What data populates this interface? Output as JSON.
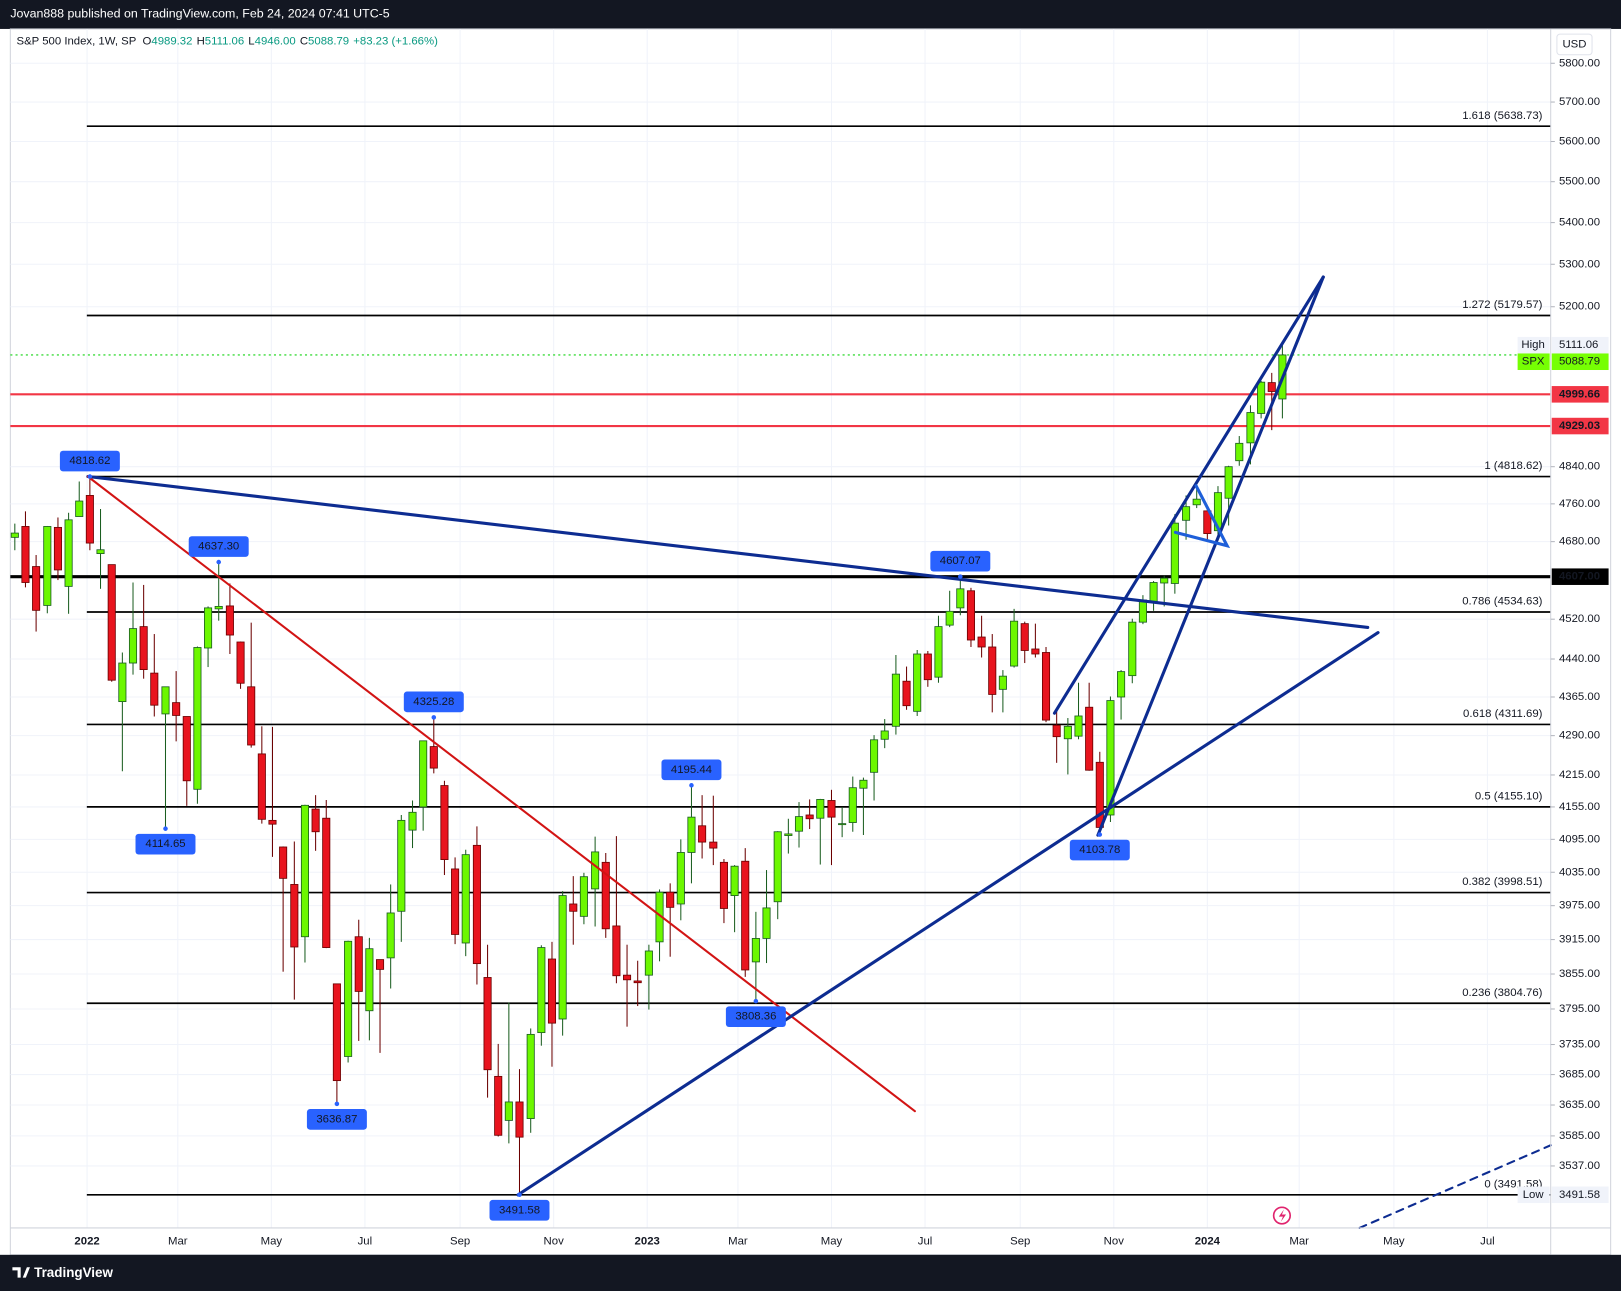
{
  "header": {
    "publisher": "Jovan888 published on TradingView.com, Feb 24, 2024 07:41 UTC-5",
    "ohlc": [
      {
        "key": "O",
        "value": "4989.32"
      },
      {
        "key": "H",
        "value": "5111.06"
      },
      {
        "key": "L",
        "value": "4946.00"
      },
      {
        "key": "C",
        "value": "5088.79"
      }
    ],
    "change": "+83.23 (+1.66%)"
  },
  "footer": {
    "brand": "TradingView"
  },
  "chart_data": {
    "type": "candlestick",
    "title": "S&P 500 Index, 1W, SP",
    "currency": "USD",
    "x": [
      2021.871,
      2021.89,
      2021.909,
      2021.929,
      2021.948,
      2021.967,
      2021.986,
      2022.005,
      2022.024,
      2022.044,
      2022.063,
      2022.082,
      2022.101,
      2022.12,
      2022.14,
      2022.159,
      2022.178,
      2022.197,
      2022.216,
      2022.235,
      2022.255,
      2022.274,
      2022.293,
      2022.312,
      2022.331,
      2022.35,
      2022.37,
      2022.389,
      2022.408,
      2022.427,
      2022.446,
      2022.466,
      2022.485,
      2022.504,
      2022.523,
      2022.542,
      2022.561,
      2022.581,
      2022.6,
      2022.619,
      2022.638,
      2022.657,
      2022.676,
      2022.696,
      2022.715,
      2022.734,
      2022.753,
      2022.772,
      2022.792,
      2022.811,
      2022.83,
      2022.849,
      2022.868,
      2022.887,
      2022.907,
      2022.926,
      2022.945,
      2022.964,
      2022.983,
      2023.003,
      2023.022,
      2023.041,
      2023.06,
      2023.079,
      2023.098,
      2023.118,
      2023.137,
      2023.156,
      2023.175,
      2023.194,
      2023.213,
      2023.233,
      2023.252,
      2023.271,
      2023.29,
      2023.309,
      2023.329,
      2023.348,
      2023.367,
      2023.386,
      2023.405,
      2023.424,
      2023.444,
      2023.463,
      2023.482,
      2023.501,
      2023.52,
      2023.54,
      2023.559,
      2023.578,
      2023.597,
      2023.616,
      2023.635,
      2023.655,
      2023.674,
      2023.693,
      2023.712,
      2023.731,
      2023.751,
      2023.77,
      2023.789,
      2023.808,
      2023.827,
      2023.846,
      2023.866,
      2023.885,
      2023.904,
      2023.923,
      2023.942,
      2023.962,
      2023.981,
      2024.0,
      2024.019,
      2024.038,
      2024.057,
      2024.077,
      2024.096,
      2024.115,
      2024.134
    ],
    "open": [
      4689,
      4712,
      4628,
      4548,
      4710,
      4587,
      4733,
      4778,
      4655,
      4632,
      4356,
      4432,
      4505,
      4412,
      4332,
      4354,
      4327,
      4188,
      4462,
      4541,
      4547,
      4474,
      4385,
      4255,
      4130,
      4081,
      4013,
      3920,
      4151,
      4134,
      3838,
      3715,
      3920,
      3792,
      3880,
      3883,
      3965,
      4112,
      4155,
      4269,
      4195,
      4041,
      3909,
      4084,
      3849,
      3682,
      3610,
      3640,
      3613,
      3755,
      3881,
      3778,
      3978,
      3956,
      4005,
      4053,
      3939,
      3853,
      3843,
      3853,
      3911,
      3999,
      3978,
      4071,
      4120,
      4090,
      4053,
      3993,
      4055,
      3876,
      3917,
      3982,
      4102,
      4110,
      4140,
      4134,
      4167,
      4124,
      4126,
      4190,
      4220,
      4283,
      4308,
      4396,
      4337,
      4450,
      4404,
      4508,
      4543,
      4578,
      4484,
      4464,
      4380,
      4426,
      4511,
      4460,
      4453,
      4310,
      4284,
      4289,
      4345,
      4239,
      4140,
      4365,
      4407,
      4514,
      4554,
      4594,
      4593,
      4725,
      4758,
      4745,
      4703,
      4772,
      4853,
      4892,
      4957,
      5026,
      4989.32
    ],
    "high": [
      4718,
      4744,
      4652,
      4713,
      4731,
      4741,
      4808,
      4818.62,
      4749,
      4632,
      4453,
      4595,
      4590,
      4490,
      4385,
      4416,
      4327,
      4465,
      4546,
      4637.3,
      4593,
      4475,
      4513,
      4308,
      4307,
      4082,
      4091,
      4159,
      4177,
      4168,
      3838,
      3913,
      3950,
      3918,
      3880,
      4013,
      4140,
      4167,
      4280,
      4325.28,
      4204,
      4062,
      4076,
      4119,
      3906,
      3736,
      3806,
      3694,
      3762,
      3905,
      3911,
      4001,
      4028,
      4034,
      4100,
      4070,
      4101,
      3906,
      3878,
      3906,
      4004,
      4015,
      4095,
      4195.44,
      4177,
      4176,
      4059,
      4048,
      4079,
      3964,
      4039,
      4110,
      4133,
      4164,
      4169,
      4170,
      4187,
      4155,
      4212,
      4210,
      4291,
      4322,
      4448,
      4425,
      4458,
      4456,
      4527,
      4578,
      4607.07,
      4584,
      4527,
      4490,
      4418,
      4541,
      4515,
      4511,
      4464,
      4338,
      4324,
      4393,
      4393,
      4259,
      4366,
      4418,
      4521,
      4569,
      4598,
      4609,
      4738,
      4778,
      4793,
      4755,
      4798,
      4842,
      4907,
      4975,
      5030,
      5048,
      5111.06
    ],
    "low": [
      4662,
      4585,
      4495,
      4532,
      4600,
      4531,
      4733,
      4662,
      4582,
      4395,
      4222,
      4409,
      4401,
      4327,
      4114.65,
      4279,
      4157,
      4161,
      4424,
      4517,
      4450,
      4381,
      4267,
      4124,
      4063,
      3859,
      3811,
      3875,
      4074,
      3900,
      3636.87,
      3705,
      3741,
      3742,
      3721,
      3830,
      3911,
      4079,
      4111,
      4218,
      4030,
      3907,
      3886,
      3837,
      3647,
      3584,
      3573,
      3491.58,
      3590,
      3733,
      3698,
      3750,
      3906,
      3942,
      3938,
      3918,
      3839,
      3765,
      3800,
      3794,
      3877,
      3885,
      3949,
      4015,
      4060,
      4048,
      3944,
      3928,
      3850,
      3808.36,
      3874,
      3951,
      4069,
      4080,
      4114,
      4049,
      4048,
      4099,
      4109,
      4103,
      4167,
      4266,
      4292,
      4340,
      4328,
      4385,
      4393,
      4504,
      4528,
      4464,
      4443,
      4335,
      4335,
      4423,
      4432,
      4443,
      4316,
      4238,
      4216,
      4283,
      4223,
      4103.78,
      4127,
      4321,
      4392,
      4510,
      4537,
      4546,
      4572,
      4684,
      4751,
      4682,
      4682,
      4714,
      4842,
      4845,
      4946,
      4920,
      4946
    ],
    "close": [
      4698,
      4595,
      4538,
      4712,
      4621,
      4726,
      4766,
      4677,
      4663,
      4398,
      4432,
      4501,
      4419,
      4349,
      4385,
      4329,
      4204,
      4463,
      4543,
      4546,
      4488,
      4392,
      4272,
      4132,
      4123,
      4024,
      3902,
      4158,
      4109,
      3901,
      3675,
      3912,
      3825,
      3899,
      3863,
      3962,
      4130,
      4145,
      4280,
      4228,
      4058,
      3924,
      4067,
      3873,
      3693,
      3586,
      3640,
      3583,
      3752,
      3901,
      3771,
      3993,
      3965,
      4027,
      4072,
      3934,
      3852,
      3845,
      3840,
      3895,
      3999,
      3972,
      4071,
      4136,
      4090,
      4079,
      3970,
      4046,
      3862,
      3917,
      3971,
      4109,
      4105,
      4137,
      4133,
      4169,
      4136,
      4124,
      4191,
      4205,
      4282,
      4299,
      4410,
      4348,
      4450,
      4399,
      4505,
      4536,
      4582,
      4478,
      4464,
      4370,
      4406,
      4516,
      4457,
      4450,
      4320,
      4288,
      4308,
      4328,
      4224,
      4117,
      4358,
      4415,
      4514,
      4559,
      4595,
      4604,
      4719,
      4754,
      4770,
      4697,
      4784,
      4840,
      4891,
      4959,
      5027,
      5006,
      5088.79
    ],
    "up_color": "#6cf700",
    "down_color": "#e8141e",
    "xlim": [
      2021.863,
      2024.613
    ],
    "xticks": [
      2022,
      {
        "value": 2022.162,
        "label": "Mar"
      },
      {
        "value": 2022.329,
        "label": "May"
      },
      {
        "value": 2022.496,
        "label": "Jul"
      },
      {
        "value": 2022.666,
        "label": "Sep"
      },
      {
        "value": 2022.833,
        "label": "Nov"
      },
      2023,
      {
        "value": 2023.162,
        "label": "Mar"
      },
      {
        "value": 2023.329,
        "label": "May"
      },
      {
        "value": 2023.496,
        "label": "Jul"
      },
      {
        "value": 2023.666,
        "label": "Sep"
      },
      {
        "value": 2023.833,
        "label": "Nov"
      },
      2024,
      {
        "value": 2024.164,
        "label": "Mar"
      },
      {
        "value": 2024.333,
        "label": "May"
      },
      {
        "value": 2024.5,
        "label": "Jul"
      }
    ],
    "ylim": [
      3440,
      5890
    ],
    "log_scale": true,
    "grid": true,
    "yticks": [
      {
        "value": 5800,
        "label": "5800.00"
      },
      {
        "value": 5700,
        "label": "5700.00"
      },
      {
        "value": 5600,
        "label": "5600.00"
      },
      {
        "value": 5500,
        "label": "5500.00"
      },
      {
        "value": 5400,
        "label": "5400.00"
      },
      {
        "value": 5300,
        "label": "5300.00"
      },
      {
        "value": 5200,
        "label": "5200.00"
      },
      {
        "value": 4840,
        "label": "4840.00"
      },
      {
        "value": 4760,
        "label": "4760.00"
      },
      {
        "value": 4680,
        "label": "4680.00"
      },
      {
        "value": 4520,
        "label": "4520.00"
      },
      {
        "value": 4440,
        "label": "4440.00"
      },
      {
        "value": 4365,
        "label": "4365.00"
      },
      {
        "value": 4290,
        "label": "4290.00"
      },
      {
        "value": 4215,
        "label": "4215.00"
      },
      {
        "value": 4155,
        "label": "4155.00"
      },
      {
        "value": 4095,
        "label": "4095.00"
      },
      {
        "value": 4035,
        "label": "4035.00"
      },
      {
        "value": 3975,
        "label": "3975.00"
      },
      {
        "value": 3915,
        "label": "3915.00"
      },
      {
        "value": 3855,
        "label": "3855.00"
      },
      {
        "value": 3795,
        "label": "3795.00"
      },
      {
        "value": 3735,
        "label": "3735.00"
      },
      {
        "value": 3685,
        "label": "3685.00"
      },
      {
        "value": 3635,
        "label": "3635.00"
      },
      {
        "value": 3585,
        "label": "3585.00"
      },
      {
        "value": 3537,
        "label": "3537.00"
      }
    ],
    "fib_levels": [
      {
        "label": "1.618 (5638.73)",
        "value": 5638.73
      },
      {
        "label": "1.272 (5179.57)",
        "value": 5179.57
      },
      {
        "label": "1 (4818.62)",
        "value": 4818.62
      },
      {
        "label": "0.786 (4534.63)",
        "value": 4534.63
      },
      {
        "label": "0.618 (4311.69)",
        "value": 4311.69
      },
      {
        "label": "0.5 (4155.10)",
        "value": 4155.1
      },
      {
        "label": "0.382 (3998.51)",
        "value": 3998.51
      },
      {
        "label": "0.236 (3804.76)",
        "value": 3804.76
      },
      {
        "label": "0 (3491.58)",
        "value": 3491.58
      }
    ],
    "levels": [
      {
        "value": 4999.66,
        "color": "#f23645"
      },
      {
        "value": 4929.03,
        "color": "#f23645"
      },
      {
        "value": {
          "value": 4607,
          "label": "4607.00"
        },
        "color": "#000000"
      }
    ],
    "price_badges": [
      {
        "label": "High",
        "value": 5111.06
      },
      {
        "label": "SPX",
        "value": 5088.79,
        "color": "#76ff03"
      },
      {
        "label": "Low",
        "value": 3491.58
      }
    ],
    "pivots": [
      {
        "x": 2022.005,
        "y": 4818.62
      },
      {
        "x": 2022.235,
        "y": {
          "value": 4637.3,
          "label": "4637.30"
        }
      },
      {
        "x": 2022.14,
        "y": 4114.65
      },
      {
        "x": 2022.446,
        "y": 3636.87
      },
      {
        "x": 2022.619,
        "y": 4325.28
      },
      {
        "x": 2022.772,
        "y": 3491.58
      },
      {
        "x": 2023.079,
        "y": 4195.44
      },
      {
        "x": 2023.194,
        "y": 3808.36
      },
      {
        "x": 2023.559,
        "y": 4607.07
      },
      {
        "x": 2023.808,
        "y": 4103.78
      }
    ]
  }
}
